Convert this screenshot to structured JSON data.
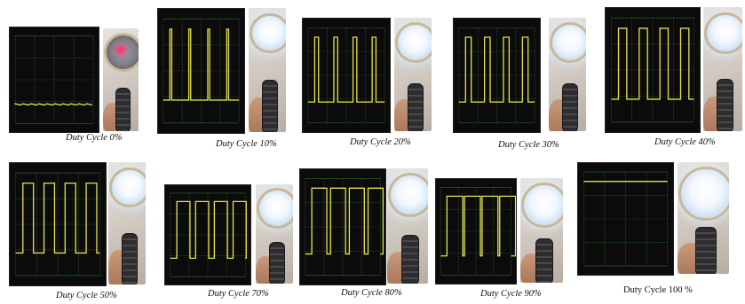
{
  "figures": [
    {
      "caption": "Duty Cycle 0%",
      "duty": 0,
      "lamp": "off"
    },
    {
      "caption": "Duty Cycle 10%",
      "duty": 10,
      "lamp": "on"
    },
    {
      "caption": "Duty Cycle 20%",
      "duty": 20,
      "lamp": "on"
    },
    {
      "caption": "Duty Cycle 30%",
      "duty": 30,
      "lamp": "on"
    },
    {
      "caption": "Duty Cycle 40%",
      "duty": 40,
      "lamp": "on"
    },
    {
      "caption": "Duty Cycle 50%",
      "duty": 50,
      "lamp": "on"
    },
    {
      "caption": "Duty Cycle 70%",
      "duty": 70,
      "lamp": "on"
    },
    {
      "caption": "Duty Cycle 80%",
      "duty": 80,
      "lamp": "on"
    },
    {
      "caption": "Duty Cycle 90%",
      "duty": 90,
      "lamp": "on"
    },
    {
      "caption": "Duty Cycle 100 %",
      "duty": 100,
      "lamp": "on"
    }
  ],
  "colors": {
    "scope_background": "#0b0b0b",
    "grid": "#2f6b2f",
    "trace": "#e8e24a"
  }
}
